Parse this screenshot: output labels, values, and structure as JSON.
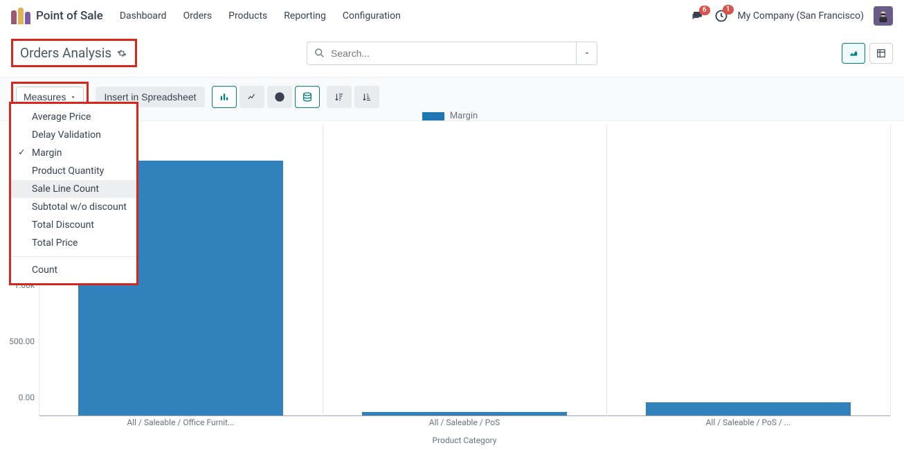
{
  "topnav": {
    "app_title": "Point of Sale",
    "links": [
      "Dashboard",
      "Orders",
      "Products",
      "Reporting",
      "Configuration"
    ],
    "conversations_badge": "6",
    "activities_badge": "1",
    "company": "My Company (San Francisco)"
  },
  "control": {
    "page_title": "Orders Analysis",
    "search_placeholder": "Search..."
  },
  "toolbar": {
    "measures_label": "Measures",
    "spreadsheet_label": "Insert in Spreadsheet"
  },
  "measures_menu": {
    "items": [
      {
        "label": "Average Price",
        "checked": false,
        "hover": false
      },
      {
        "label": "Delay Validation",
        "checked": false,
        "hover": false
      },
      {
        "label": "Margin",
        "checked": true,
        "hover": false
      },
      {
        "label": "Product Quantity",
        "checked": false,
        "hover": false
      },
      {
        "label": "Sale Line Count",
        "checked": false,
        "hover": true
      },
      {
        "label": "Subtotal w/o discount",
        "checked": false,
        "hover": false
      },
      {
        "label": "Total Discount",
        "checked": false,
        "hover": false
      },
      {
        "label": "Total Price",
        "checked": false,
        "hover": false
      }
    ],
    "footer_label": "Count"
  },
  "chart": {
    "legend_label": "Margin",
    "series_color": "#3081bc",
    "background_color": "#ffffff",
    "grid_color": "#e5e7eb",
    "y_ticks": [
      {
        "v": 0,
        "label": "0.00"
      },
      {
        "v": 500,
        "label": "500.00"
      },
      {
        "v": 1000,
        "label": "1.00k"
      }
    ],
    "y_max": 2600,
    "categories": [
      {
        "label": "All / Saleable / Office Furnit...",
        "value": 2280
      },
      {
        "label": "All / Saleable / PoS",
        "value": 30
      },
      {
        "label": "All / Saleable / PoS / ...",
        "value": 120
      }
    ],
    "bar_width_ratio": 0.72,
    "x_title": "Product Category"
  },
  "highlight_color": "#d9261c",
  "teal": "#017e84"
}
